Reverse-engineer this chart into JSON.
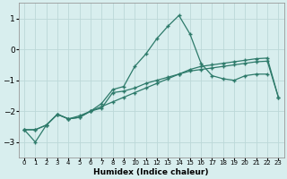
{
  "xlabel": "Humidex (Indice chaleur)",
  "background_color": "#d8eeee",
  "grid_color": "#bcd8d8",
  "line_color": "#2d7a6a",
  "xlim": [
    -0.5,
    23.5
  ],
  "ylim": [
    -3.5,
    1.5
  ],
  "yticks": [
    -3,
    -2,
    -1,
    0,
    1
  ],
  "xtick_labels": [
    "0",
    "1",
    "2",
    "3",
    "4",
    "5",
    "6",
    "7",
    "8",
    "9",
    "10",
    "11",
    "12",
    "13",
    "14",
    "15",
    "16",
    "17",
    "18",
    "19",
    "20",
    "21",
    "22",
    "23"
  ],
  "line_spike_x": [
    0,
    1,
    2,
    3,
    4,
    5,
    6,
    7,
    8,
    9,
    10,
    11,
    12,
    13,
    14,
    15,
    16,
    17,
    18,
    19,
    20,
    21,
    22
  ],
  "line_spike_y": [
    -2.6,
    -3.0,
    -2.45,
    -2.1,
    -2.25,
    -2.2,
    -2.0,
    -1.75,
    -1.3,
    -1.2,
    -0.55,
    -0.15,
    0.35,
    0.75,
    1.1,
    0.5,
    -0.45,
    -0.85,
    -0.95,
    -1.0,
    -0.85,
    -0.8,
    -0.8
  ],
  "line_diag_x": [
    0,
    1,
    2,
    3,
    4,
    5,
    6,
    7,
    8,
    9,
    10,
    11,
    12,
    13,
    14,
    15,
    16,
    17,
    18,
    19,
    20,
    21,
    22,
    23
  ],
  "line_diag_y": [
    -2.6,
    -2.6,
    -2.45,
    -2.1,
    -2.25,
    -2.2,
    -2.0,
    -1.85,
    -1.7,
    -1.55,
    -1.4,
    -1.25,
    -1.1,
    -0.95,
    -0.8,
    -0.65,
    -0.55,
    -0.5,
    -0.45,
    -0.4,
    -0.35,
    -0.3,
    -0.28,
    -1.55
  ],
  "line_flat_x": [
    0,
    1,
    2,
    3,
    4,
    5,
    6,
    7,
    8,
    9,
    10,
    11,
    12,
    13,
    14,
    15,
    16,
    17,
    18,
    19,
    20,
    21,
    22,
    23
  ],
  "line_flat_y": [
    -2.6,
    -2.6,
    -2.45,
    -2.1,
    -2.25,
    -2.15,
    -2.0,
    -1.9,
    -1.4,
    -1.35,
    -1.25,
    -1.1,
    -1.0,
    -0.9,
    -0.8,
    -0.7,
    -0.65,
    -0.6,
    -0.55,
    -0.5,
    -0.45,
    -0.4,
    -0.38,
    -1.55
  ]
}
